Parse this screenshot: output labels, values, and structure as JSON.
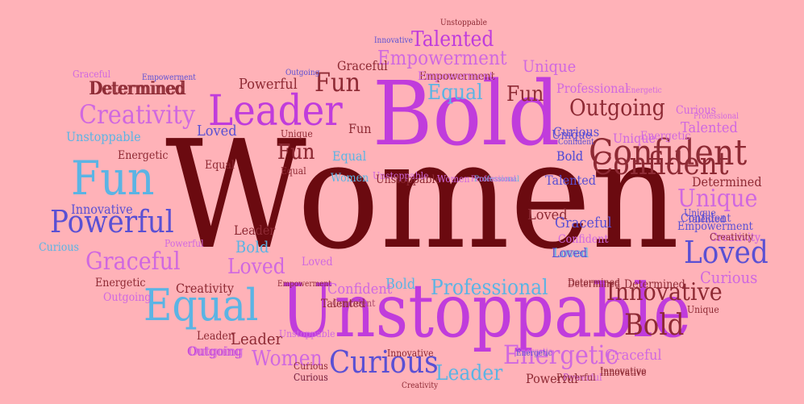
{
  "background": "#FFB2B8",
  "palette": {
    "maroon": "#6B0A10",
    "brown": "#8E2A34",
    "magenta": "#C03CDC",
    "orchid": "#D068E0",
    "sky": "#5BB4E4",
    "blue": "#5A50D4",
    "rose": "#B05070"
  },
  "words": [
    {
      "text": "Women",
      "color": "maroon"
    },
    {
      "text": "Bold",
      "color": "magenta"
    },
    {
      "text": "Unstoppable",
      "color": "magenta"
    },
    {
      "text": "Leader",
      "color": "magenta"
    },
    {
      "text": "Confident",
      "color": "brown"
    },
    {
      "text": "Fun",
      "color": "sky"
    },
    {
      "text": "Equal",
      "color": "sky"
    },
    {
      "text": "Powerful",
      "color": "blue"
    },
    {
      "text": "Creativity",
      "color": "orchid"
    },
    {
      "text": "Outgoing",
      "color": "brown"
    },
    {
      "text": "Empowerment",
      "color": "orchid"
    },
    {
      "text": "Talented",
      "color": "magenta"
    },
    {
      "text": "Determined",
      "color": "brown"
    },
    {
      "text": "Loved",
      "color": "blue"
    },
    {
      "text": "Curious",
      "color": "blue"
    },
    {
      "text": "Innovative",
      "color": "brown"
    },
    {
      "text": "Graceful",
      "color": "orchid"
    },
    {
      "text": "Unique",
      "color": "orchid"
    },
    {
      "text": "Fun",
      "color": "brown"
    },
    {
      "text": "Fun",
      "color": "brown"
    },
    {
      "text": "Bold",
      "color": "brown"
    },
    {
      "text": "Energetic",
      "color": "orchid"
    },
    {
      "text": "Professional",
      "color": "sky"
    },
    {
      "text": "Leader",
      "color": "sky"
    },
    {
      "text": "Curious",
      "color": "orchid"
    },
    {
      "text": "Unique",
      "color": "blue"
    },
    {
      "text": "Equal",
      "color": "sky"
    },
    {
      "text": "Powerful",
      "color": "brown"
    },
    {
      "text": "Fun",
      "color": "brown"
    },
    {
      "text": "Loved",
      "color": "blue"
    },
    {
      "text": "Women",
      "color": "orchid"
    },
    {
      "text": "Graceful",
      "color": "brown"
    },
    {
      "text": "Graceful",
      "color": "orchid"
    },
    {
      "text": "Outgoing",
      "color": "magenta"
    },
    {
      "text": "Unstoppable",
      "color": "sky"
    },
    {
      "text": "Energetic",
      "color": "brown"
    },
    {
      "text": "Loved",
      "color": "orchid"
    },
    {
      "text": "Bold",
      "color": "sky"
    },
    {
      "text": "Equal",
      "color": "sky"
    },
    {
      "text": "Confident",
      "color": "orchid"
    },
    {
      "text": "Equal",
      "color": "brown"
    },
    {
      "text": "Fun",
      "color": "brown"
    },
    {
      "text": "Unique",
      "color": "brown"
    },
    {
      "text": "Loved",
      "color": "brown"
    },
    {
      "text": "Equal",
      "color": "brown"
    },
    {
      "text": "Leader",
      "color": "brown"
    },
    {
      "text": "Bold",
      "color": "sky"
    },
    {
      "text": "Loved",
      "color": "orchid"
    },
    {
      "text": "Innovative",
      "color": "blue"
    },
    {
      "text": "Unstoppable",
      "color": "orchid"
    },
    {
      "text": "Determined",
      "color": "brown"
    },
    {
      "text": "Creativity",
      "color": "brown"
    },
    {
      "text": "Curious",
      "color": "sky"
    },
    {
      "text": "Energetic",
      "color": "brown"
    },
    {
      "text": "Outgoing",
      "color": "orchid"
    },
    {
      "text": "Leader",
      "color": "brown"
    },
    {
      "text": "Leader",
      "color": "brown"
    },
    {
      "text": "Outgoing",
      "color": "orchid"
    },
    {
      "text": "Curious",
      "color": "blue"
    },
    {
      "text": "Innovative",
      "color": "brown"
    },
    {
      "text": "Energetic",
      "color": "orchid"
    },
    {
      "text": "Graceful",
      "color": "blue"
    },
    {
      "text": "Innovative",
      "color": "brown"
    },
    {
      "text": "Powerful",
      "color": "brown"
    },
    {
      "text": "Powerful",
      "color": "orchid"
    },
    {
      "text": "Creativity",
      "color": "brown"
    },
    {
      "text": "Curious",
      "color": "brown"
    },
    {
      "text": "Unique",
      "color": "brown"
    },
    {
      "text": "Determined",
      "color": "brown"
    },
    {
      "text": "Determined",
      "color": "brown"
    },
    {
      "text": "Professional",
      "color": "sky"
    },
    {
      "text": "Bold",
      "color": "blue"
    },
    {
      "text": "Confident",
      "color": "orchid"
    },
    {
      "text": "Loved",
      "color": "sky"
    },
    {
      "text": "Powerful",
      "color": "orchid"
    },
    {
      "text": "Empowerment",
      "color": "brown"
    },
    {
      "text": "Confident",
      "color": "rose"
    },
    {
      "text": "Talented",
      "color": "brown"
    },
    {
      "text": "Confident",
      "color": "blue"
    },
    {
      "text": "Loved",
      "color": "blue"
    },
    {
      "text": "Creativity",
      "color": "orchid"
    },
    {
      "text": "Empowerment",
      "color": "blue"
    },
    {
      "text": "Talented",
      "color": "blue"
    },
    {
      "text": "Professional",
      "color": "orchid"
    },
    {
      "text": "Curious",
      "color": "orchid"
    },
    {
      "text": "Unique",
      "color": "orchid"
    },
    {
      "text": "Bold",
      "color": "blue"
    },
    {
      "text": "Confident",
      "color": "blue"
    },
    {
      "text": "Energetic",
      "color": "orchid"
    },
    {
      "text": "Curious",
      "color": "blue"
    },
    {
      "text": "Talented",
      "color": "orchid"
    },
    {
      "text": "Women",
      "color": "sky"
    },
    {
      "text": "Unstoppable",
      "color": "brown"
    },
    {
      "text": "Women",
      "color": "orchid"
    },
    {
      "text": "Professional",
      "color": "orchid"
    },
    {
      "text": "Talented",
      "color": "blue"
    },
    {
      "text": "Graceful",
      "color": "orchid"
    },
    {
      "text": "Unique",
      "color": "orchid"
    },
    {
      "text": "Professional",
      "color": "orchid"
    },
    {
      "text": "Fun",
      "color": "brown"
    },
    {
      "text": "Empowerment",
      "color": "blue"
    },
    {
      "text": "Empowerment",
      "color": "orchid"
    },
    {
      "text": "Outgoing",
      "color": "blue"
    },
    {
      "text": "Unstoppable",
      "color": "brown"
    },
    {
      "text": "Innovative",
      "color": "blue"
    },
    {
      "text": "Energetic",
      "color": "orchid"
    },
    {
      "text": "Creativity",
      "color": "orchid"
    },
    {
      "text": "Confident",
      "color": "brown"
    },
    {
      "text": "Determined",
      "color": "brown"
    },
    {
      "text": "Unstoppable",
      "color": "orchid"
    },
    {
      "text": "Powerful",
      "color": "brown"
    },
    {
      "text": "Curious",
      "color": "brown"
    },
    {
      "text": "Energetic",
      "color": "blue"
    },
    {
      "text": "Unique",
      "color": "blue"
    },
    {
      "text": "Creativity",
      "color": "brown"
    },
    {
      "text": "Determined",
      "color": "brown"
    },
    {
      "text": "Innovative",
      "color": "brown"
    },
    {
      "text": "Empowerment",
      "color": "brown"
    }
  ]
}
